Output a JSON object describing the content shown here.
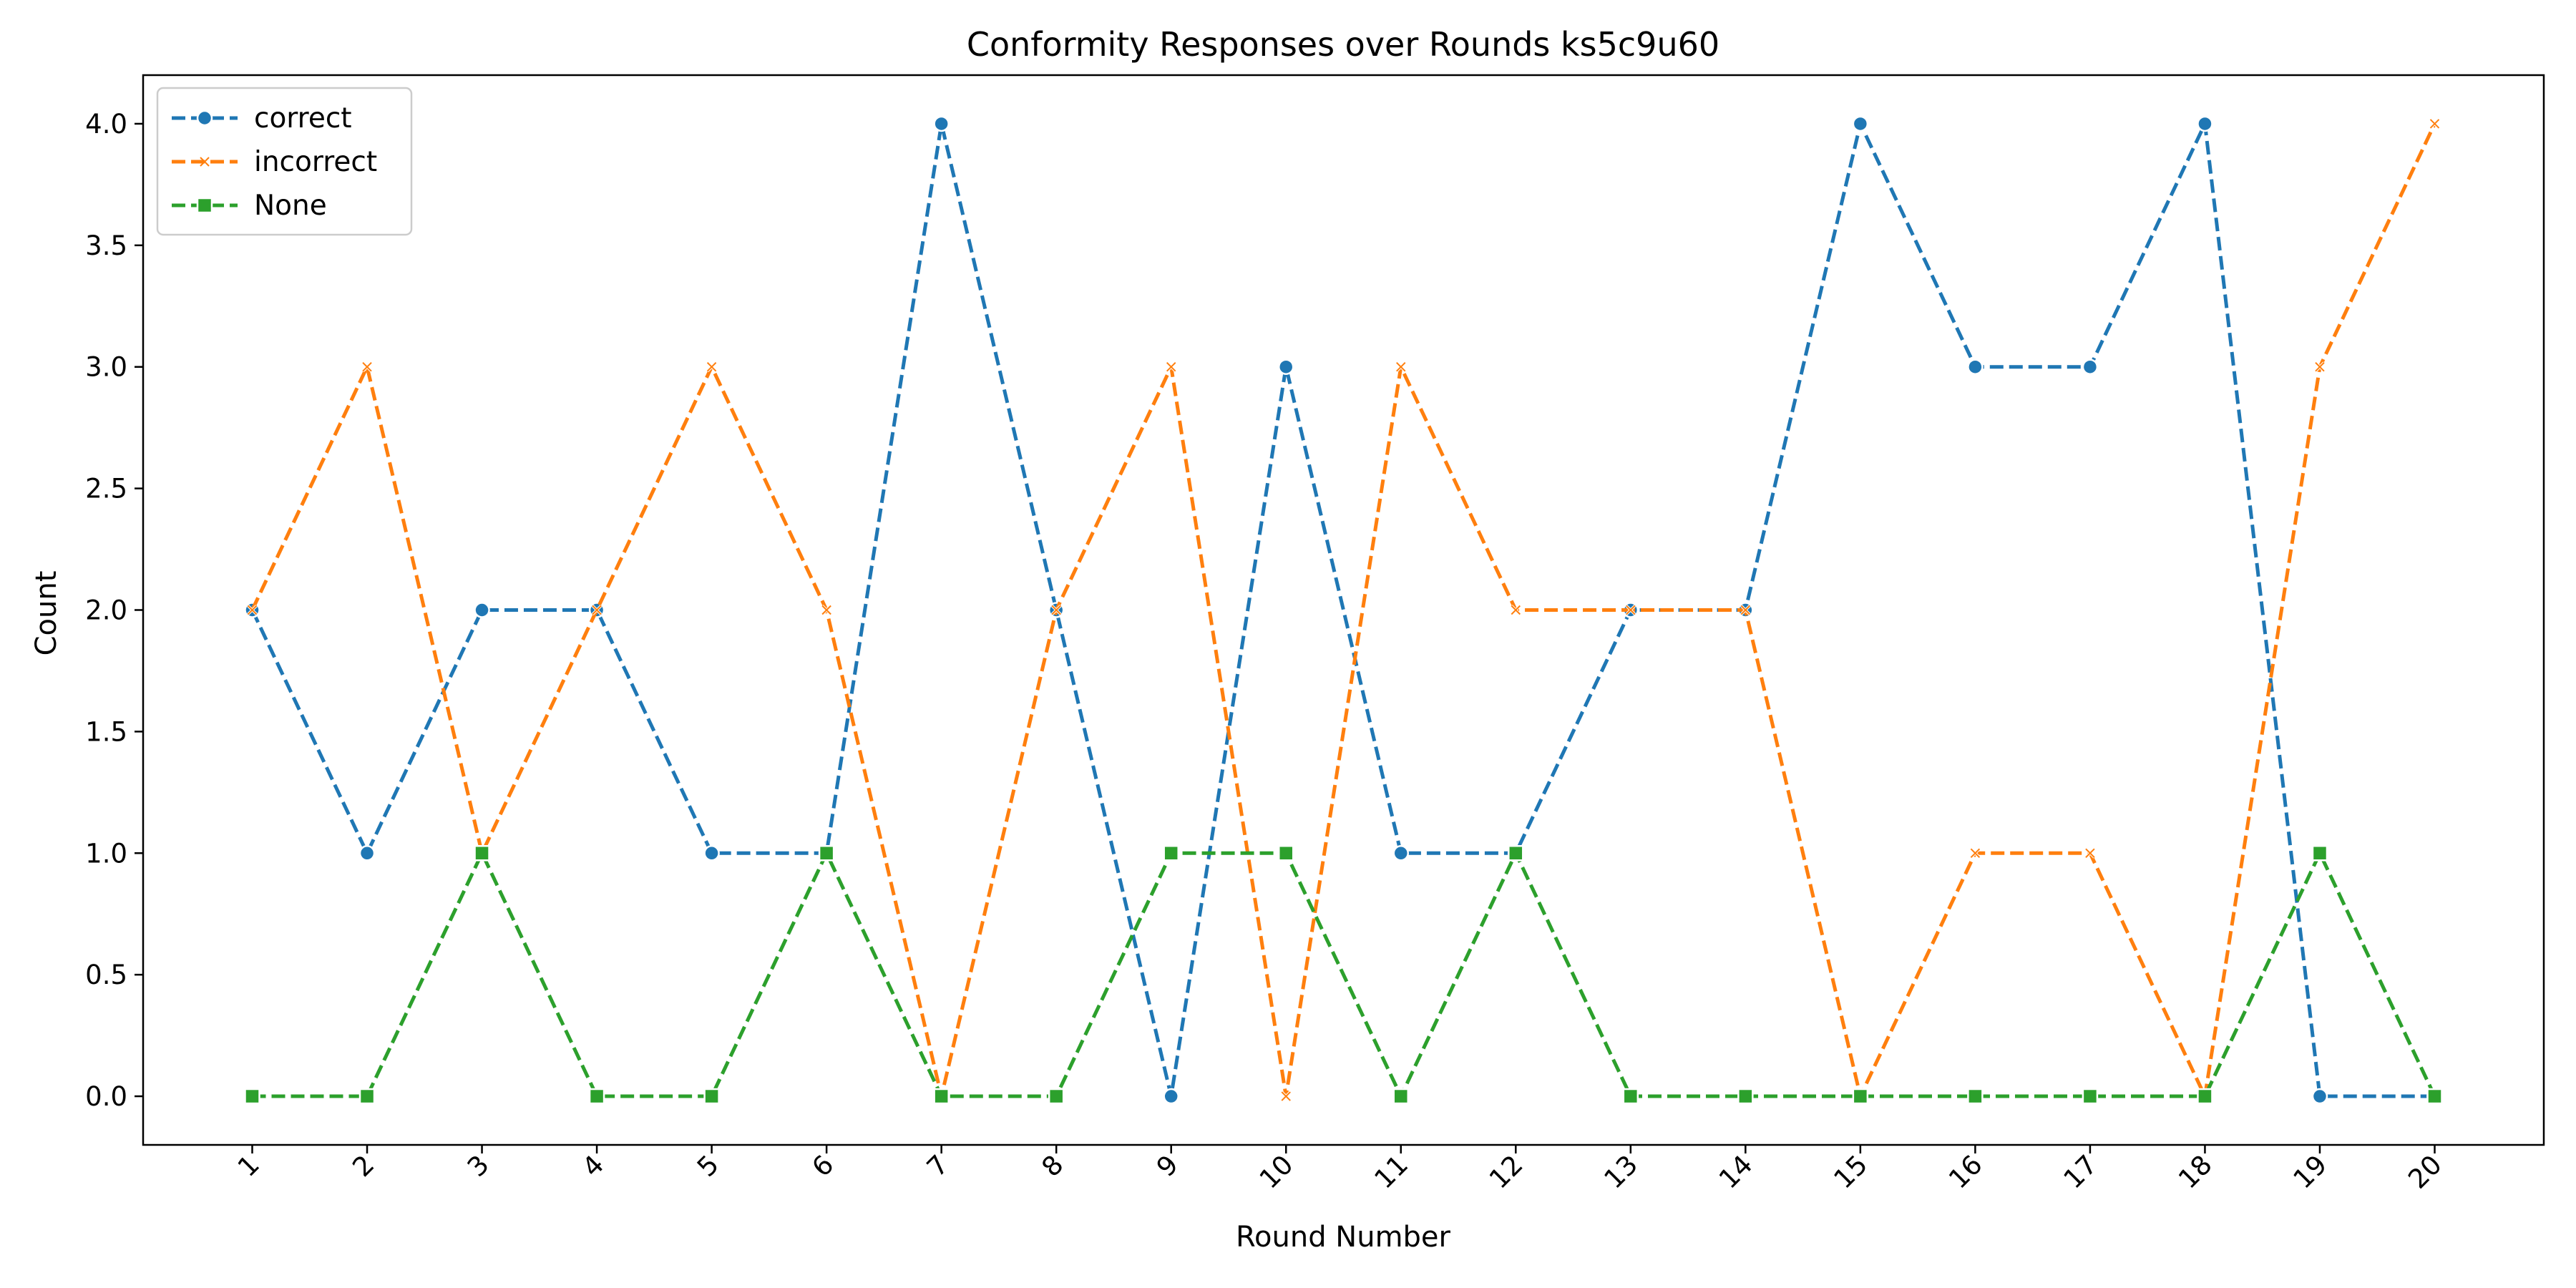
{
  "chart_data": {
    "type": "line",
    "title": "Conformity Responses over Rounds ks5c9u60",
    "xlabel": "Round Number",
    "ylabel": "Count",
    "x": [
      1,
      2,
      3,
      4,
      5,
      6,
      7,
      8,
      9,
      10,
      11,
      12,
      13,
      14,
      15,
      16,
      17,
      18,
      19,
      20
    ],
    "ylim": [
      -0.2,
      4.2
    ],
    "yticks": [
      "0.0",
      "0.5",
      "1.0",
      "1.5",
      "2.0",
      "2.5",
      "3.0",
      "3.5",
      "4.0"
    ],
    "grid": false,
    "legend_position": "top-left",
    "series": [
      {
        "name": "correct",
        "color": "#1f77b4",
        "marker": "circle",
        "values": [
          2,
          1,
          2,
          2,
          1,
          1,
          4,
          2,
          0,
          3,
          1,
          1,
          2,
          2,
          4,
          3,
          3,
          4,
          0,
          0
        ]
      },
      {
        "name": "incorrect",
        "color": "#ff7f0e",
        "marker": "x",
        "values": [
          2,
          3,
          1,
          2,
          3,
          2,
          0,
          2,
          3,
          0,
          3,
          2,
          2,
          2,
          0,
          1,
          1,
          0,
          3,
          4
        ]
      },
      {
        "name": "None",
        "color": "#2ca02c",
        "marker": "square",
        "values": [
          0,
          0,
          1,
          0,
          0,
          1,
          0,
          0,
          1,
          1,
          0,
          1,
          0,
          0,
          0,
          0,
          0,
          0,
          1,
          0
        ]
      }
    ]
  }
}
